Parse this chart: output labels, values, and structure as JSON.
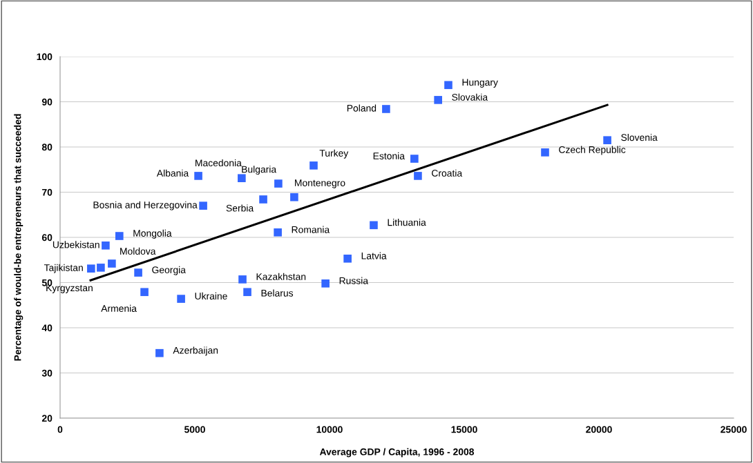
{
  "chart_data": {
    "type": "scatter",
    "xlabel": "Average GDP / Capita, 1996 - 2008",
    "ylabel": "Percentage of would-be entrepreneurs that succeeded",
    "xlim": [
      0,
      25000
    ],
    "xticks": [
      0,
      5000,
      10000,
      15000,
      20000,
      25000
    ],
    "ylim": [
      20,
      100
    ],
    "yticks": [
      20,
      30,
      40,
      50,
      60,
      70,
      80,
      90,
      100
    ],
    "grid": "y",
    "marker": "square",
    "series": [
      {
        "color": "#3366ff",
        "x": [
          14410,
          14030,
          12100,
          20310,
          18000,
          13150,
          13280,
          9410,
          5130,
          6740,
          8100,
          8690,
          7540,
          5310,
          11640,
          8080,
          2200,
          1690,
          1920,
          1150,
          1510,
          10670,
          2900,
          6770,
          9850,
          3130,
          6950,
          4490,
          3690
        ],
        "values": [
          93.7,
          90.4,
          88.4,
          81.5,
          78.8,
          77.4,
          73.6,
          75.9,
          73.6,
          73.1,
          71.9,
          68.9,
          68.4,
          67.0,
          62.7,
          61.1,
          60.3,
          58.2,
          54.2,
          53.1,
          53.3,
          55.3,
          52.2,
          50.7,
          49.8,
          47.9,
          47.9,
          46.4,
          34.4
        ]
      },
      {
        "type": "line",
        "color": "#000000",
        "x": [
          1130,
          20310
        ],
        "values": [
          50.5,
          89.3
        ],
        "marker": "none"
      }
    ],
    "annotations": [
      {
        "text": "Hungary",
        "x": 14410,
        "y": 93.7
      },
      {
        "text": "Slovakia",
        "x": 14030,
        "y": 90.4
      },
      {
        "text": "Poland",
        "x": 12100,
        "y": 88.4
      },
      {
        "text": "Slovenia",
        "x": 20310,
        "y": 81.5
      },
      {
        "text": "Czech Republic",
        "x": 18000,
        "y": 78.8
      },
      {
        "text": "Estonia",
        "x": 13150,
        "y": 77.4
      },
      {
        "text": "Croatia",
        "x": 13280,
        "y": 73.6
      },
      {
        "text": "Turkey",
        "x": 9410,
        "y": 75.9
      },
      {
        "text": "Albania",
        "x": 5130,
        "y": 73.6
      },
      {
        "text": "Macedonia",
        "x": 6740,
        "y": 73.1
      },
      {
        "text": "Bulgaria",
        "x": 8100,
        "y": 71.9
      },
      {
        "text": "Montenegro",
        "x": 8690,
        "y": 68.9
      },
      {
        "text": "Serbia",
        "x": 7540,
        "y": 68.4
      },
      {
        "text": "Bosnia and Herzegovina",
        "x": 5310,
        "y": 67.0
      },
      {
        "text": "Lithuania",
        "x": 11640,
        "y": 62.7
      },
      {
        "text": "Romania",
        "x": 8080,
        "y": 61.1
      },
      {
        "text": "Mongolia",
        "x": 2200,
        "y": 60.3
      },
      {
        "text": "Uzbekistan",
        "x": 1690,
        "y": 58.2
      },
      {
        "text": "Moldova",
        "x": 1920,
        "y": 54.2
      },
      {
        "text": "Tajikistan",
        "x": 1150,
        "y": 53.1
      },
      {
        "text": "Kyrgyzstan",
        "x": 1510,
        "y": 53.3
      },
      {
        "text": "Latvia",
        "x": 10670,
        "y": 55.3
      },
      {
        "text": "Georgia",
        "x": 2900,
        "y": 52.2
      },
      {
        "text": "Kazakhstan",
        "x": 6770,
        "y": 50.7
      },
      {
        "text": "Russia",
        "x": 9850,
        "y": 49.8
      },
      {
        "text": "Armenia",
        "x": 3130,
        "y": 47.9
      },
      {
        "text": "Belarus",
        "x": 6950,
        "y": 47.9
      },
      {
        "text": "Ukraine",
        "x": 4490,
        "y": 46.4
      },
      {
        "text": "Azerbaijan",
        "x": 3690,
        "y": 34.4
      }
    ]
  }
}
